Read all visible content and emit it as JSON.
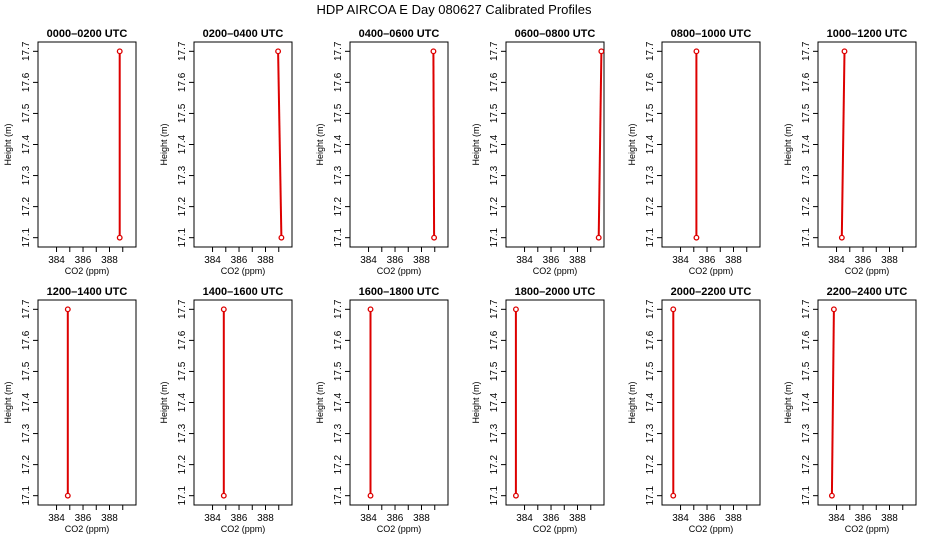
{
  "figure_title": "HDP AIRCOA E  Day 080627  Calibrated Profiles",
  "colors": {
    "series": "#dd0000",
    "frame": "#000000",
    "background": "#ffffff"
  },
  "chart_data": [
    {
      "type": "line",
      "title": "0000–0200 UTC",
      "xlabel": "CO2 (ppm)",
      "ylabel": "Height (m)",
      "xlim": [
        382.6,
        390
      ],
      "ylim": [
        17.07,
        17.73
      ],
      "xticks": [
        384,
        386,
        388
      ],
      "yticks": [
        17.1,
        17.2,
        17.3,
        17.4,
        17.5,
        17.6,
        17.7
      ],
      "series": [
        {
          "x": [
            388.77,
            388.77
          ],
          "y": [
            17.1,
            17.7
          ]
        }
      ]
    },
    {
      "type": "line",
      "title": "0200–0400 UTC",
      "xlabel": "CO2 (ppm)",
      "ylabel": "Height (m)",
      "xlim": [
        382.6,
        390
      ],
      "ylim": [
        17.07,
        17.73
      ],
      "xticks": [
        384,
        386,
        388
      ],
      "yticks": [
        17.1,
        17.2,
        17.3,
        17.4,
        17.5,
        17.6,
        17.7
      ],
      "series": [
        {
          "x": [
            389.2,
            388.95
          ],
          "y": [
            17.1,
            17.7
          ]
        }
      ]
    },
    {
      "type": "line",
      "title": "0400–0600 UTC",
      "xlabel": "CO2 (ppm)",
      "ylabel": "Height (m)",
      "xlim": [
        382.6,
        390
      ],
      "ylim": [
        17.07,
        17.73
      ],
      "xticks": [
        384,
        386,
        388
      ],
      "yticks": [
        17.1,
        17.2,
        17.3,
        17.4,
        17.5,
        17.6,
        17.7
      ],
      "series": [
        {
          "x": [
            388.95,
            388.9
          ],
          "y": [
            17.1,
            17.7
          ]
        }
      ]
    },
    {
      "type": "line",
      "title": "0600–0800 UTC",
      "xlabel": "CO2 (ppm)",
      "ylabel": "Height (m)",
      "xlim": [
        382.6,
        390
      ],
      "ylim": [
        17.07,
        17.73
      ],
      "xticks": [
        384,
        386,
        388
      ],
      "yticks": [
        17.1,
        17.2,
        17.3,
        17.4,
        17.5,
        17.6,
        17.7
      ],
      "series": [
        {
          "x": [
            389.6,
            389.8
          ],
          "y": [
            17.1,
            17.7
          ]
        }
      ]
    },
    {
      "type": "line",
      "title": "0800–1000 UTC",
      "xlabel": "CO2 (ppm)",
      "ylabel": "Height (m)",
      "xlim": [
        382.6,
        390
      ],
      "ylim": [
        17.07,
        17.73
      ],
      "xticks": [
        384,
        386,
        388
      ],
      "yticks": [
        17.1,
        17.2,
        17.3,
        17.4,
        17.5,
        17.6,
        17.7
      ],
      "series": [
        {
          "x": [
            385.2,
            385.2
          ],
          "y": [
            17.1,
            17.7
          ]
        }
      ]
    },
    {
      "type": "line",
      "title": "1000–1200 UTC",
      "xlabel": "CO2 (ppm)",
      "ylabel": "Height (m)",
      "xlim": [
        382.6,
        390
      ],
      "ylim": [
        17.07,
        17.73
      ],
      "xticks": [
        384,
        386,
        388
      ],
      "yticks": [
        17.1,
        17.2,
        17.3,
        17.4,
        17.5,
        17.6,
        17.7
      ],
      "series": [
        {
          "x": [
            384.4,
            384.6
          ],
          "y": [
            17.1,
            17.7
          ]
        }
      ]
    },
    {
      "type": "line",
      "title": "1200–1400 UTC",
      "xlabel": "CO2 (ppm)",
      "ylabel": "Height (m)",
      "xlim": [
        382.6,
        390
      ],
      "ylim": [
        17.07,
        17.73
      ],
      "xticks": [
        384,
        386,
        388
      ],
      "yticks": [
        17.1,
        17.2,
        17.3,
        17.4,
        17.5,
        17.6,
        17.7
      ],
      "series": [
        {
          "x": [
            384.85,
            384.85
          ],
          "y": [
            17.1,
            17.7
          ]
        }
      ]
    },
    {
      "type": "line",
      "title": "1400–1600 UTC",
      "xlabel": "CO2 (ppm)",
      "ylabel": "Height (m)",
      "xlim": [
        382.6,
        390
      ],
      "ylim": [
        17.07,
        17.73
      ],
      "xticks": [
        384,
        386,
        388
      ],
      "yticks": [
        17.1,
        17.2,
        17.3,
        17.4,
        17.5,
        17.6,
        17.7
      ],
      "series": [
        {
          "x": [
            384.85,
            384.85
          ],
          "y": [
            17.1,
            17.7
          ]
        }
      ]
    },
    {
      "type": "line",
      "title": "1600–1800 UTC",
      "xlabel": "CO2 (ppm)",
      "ylabel": "Height (m)",
      "xlim": [
        382.6,
        390
      ],
      "ylim": [
        17.07,
        17.73
      ],
      "xticks": [
        384,
        386,
        388
      ],
      "yticks": [
        17.1,
        17.2,
        17.3,
        17.4,
        17.5,
        17.6,
        17.7
      ],
      "series": [
        {
          "x": [
            384.15,
            384.15
          ],
          "y": [
            17.1,
            17.7
          ]
        }
      ]
    },
    {
      "type": "line",
      "title": "1800–2000 UTC",
      "xlabel": "CO2 (ppm)",
      "ylabel": "Height (m)",
      "xlim": [
        382.6,
        390
      ],
      "ylim": [
        17.07,
        17.73
      ],
      "xticks": [
        384,
        386,
        388
      ],
      "yticks": [
        17.1,
        17.2,
        17.3,
        17.4,
        17.5,
        17.6,
        17.7
      ],
      "series": [
        {
          "x": [
            383.35,
            383.35
          ],
          "y": [
            17.1,
            17.7
          ]
        }
      ]
    },
    {
      "type": "line",
      "title": "2000–2200 UTC",
      "xlabel": "CO2 (ppm)",
      "ylabel": "Height (m)",
      "xlim": [
        382.6,
        390
      ],
      "ylim": [
        17.07,
        17.73
      ],
      "xticks": [
        384,
        386,
        388
      ],
      "yticks": [
        17.1,
        17.2,
        17.3,
        17.4,
        17.5,
        17.6,
        17.7
      ],
      "series": [
        {
          "x": [
            383.45,
            383.45
          ],
          "y": [
            17.1,
            17.7
          ]
        }
      ]
    },
    {
      "type": "line",
      "title": "2200–2400 UTC",
      "xlabel": "CO2 (ppm)",
      "ylabel": "Height (m)",
      "xlim": [
        382.6,
        390
      ],
      "ylim": [
        17.07,
        17.73
      ],
      "xticks": [
        384,
        386,
        388
      ],
      "yticks": [
        17.1,
        17.2,
        17.3,
        17.4,
        17.5,
        17.6,
        17.7
      ],
      "series": [
        {
          "x": [
            383.65,
            383.8
          ],
          "y": [
            17.1,
            17.7
          ]
        }
      ]
    }
  ]
}
